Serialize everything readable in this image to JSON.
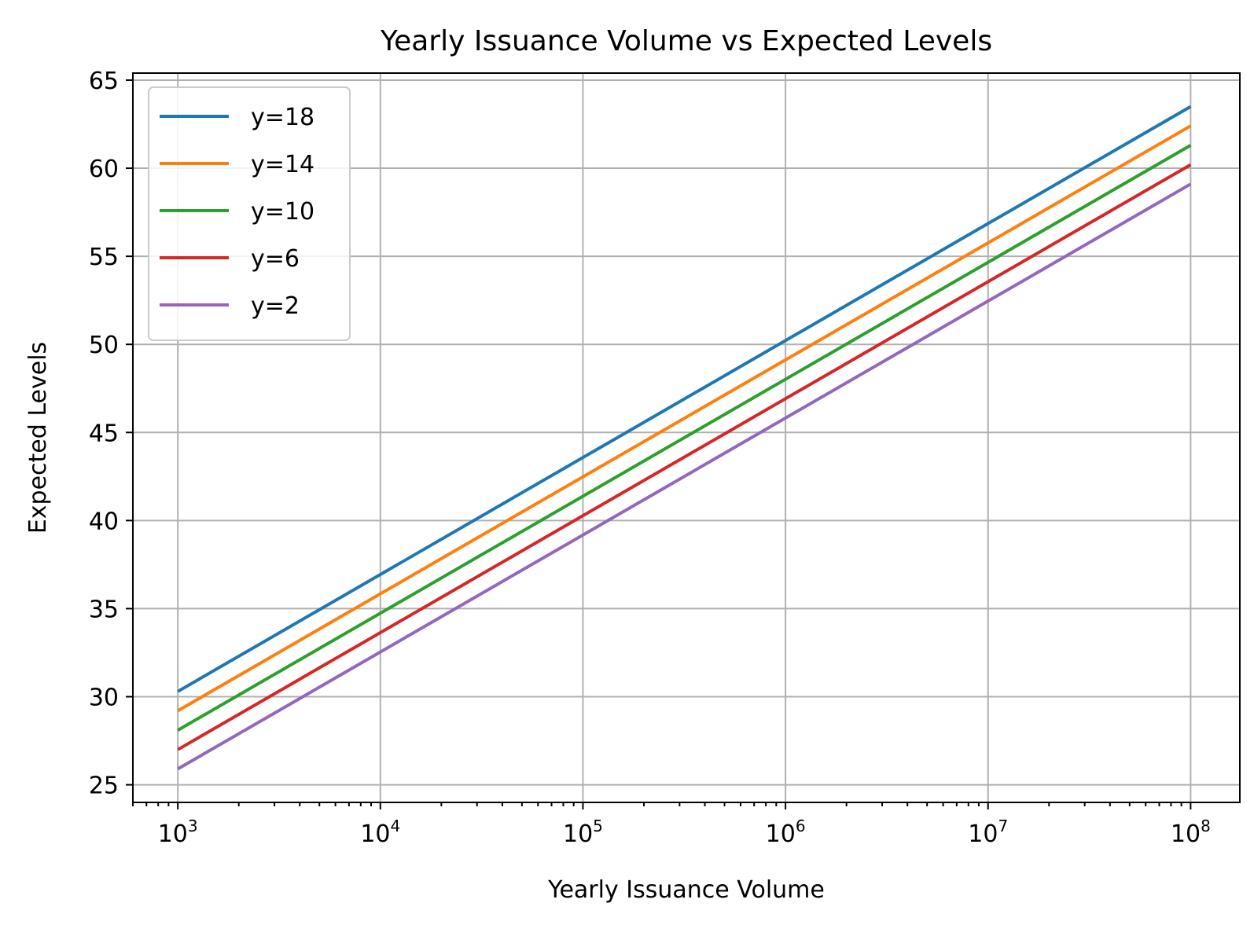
{
  "chart_data": {
    "type": "line",
    "title": "Yearly Issuance Volume vs Expected Levels",
    "xlabel": "Yearly Issuance Volume",
    "ylabel": "Expected Levels",
    "x_scale": "log",
    "xlim": [
      600,
      175000000
    ],
    "ylim": [
      24,
      65.4
    ],
    "x_ticks": [
      {
        "value": 1000,
        "base": "10",
        "exp": "3"
      },
      {
        "value": 10000,
        "base": "10",
        "exp": "4"
      },
      {
        "value": 100000,
        "base": "10",
        "exp": "5"
      },
      {
        "value": 1000000,
        "base": "10",
        "exp": "6"
      },
      {
        "value": 10000000,
        "base": "10",
        "exp": "7"
      },
      {
        "value": 100000000,
        "base": "10",
        "exp": "8"
      }
    ],
    "y_ticks": [
      25,
      30,
      35,
      40,
      45,
      50,
      55,
      60,
      65
    ],
    "grid": true,
    "legend_position": "upper-left",
    "x": [
      1000,
      100000000
    ],
    "series": [
      {
        "name": "y=18",
        "color": "#1f77b4",
        "values": [
          30.3,
          63.5
        ]
      },
      {
        "name": "y=14",
        "color": "#ff7f0e",
        "values": [
          29.2,
          62.4
        ]
      },
      {
        "name": "y=10",
        "color": "#2ca02c",
        "values": [
          28.1,
          61.3
        ]
      },
      {
        "name": "y=6",
        "color": "#d62728",
        "values": [
          27.0,
          60.2
        ]
      },
      {
        "name": "y=2",
        "color": "#9467bd",
        "values": [
          25.9,
          59.1
        ]
      }
    ]
  }
}
